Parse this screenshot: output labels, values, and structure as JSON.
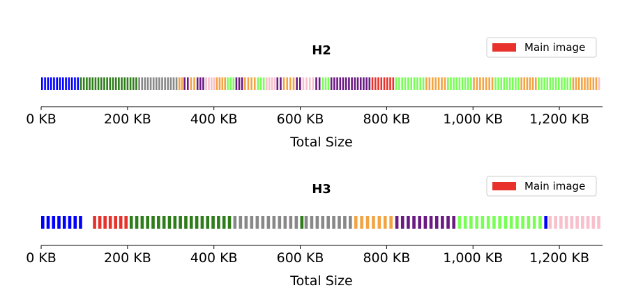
{
  "chart_data": [
    {
      "type": "bar",
      "title": "H2",
      "xlabel": "Total Size",
      "xlim": [
        0,
        1300
      ],
      "x_unit": "KB",
      "xticks": [
        0,
        200,
        400,
        600,
        800,
        1000,
        1200
      ],
      "xtick_labels": [
        "0 KB",
        "200 KB",
        "400 KB",
        "600 KB",
        "800 KB",
        "1,000 KB",
        "1,200 KB"
      ],
      "legend": {
        "label": "Main image",
        "color": "#e8312a",
        "placement": "top-right"
      },
      "segments": [
        {
          "start": 0,
          "end": 90,
          "color": "#0000ff"
        },
        {
          "start": 90,
          "end": 225,
          "color": "#2e7d1a"
        },
        {
          "start": 225,
          "end": 318,
          "color": "#888888"
        },
        {
          "start": 318,
          "end": 330,
          "color": "#f2a444"
        },
        {
          "start": 330,
          "end": 345,
          "color": "#6a1a82"
        },
        {
          "start": 345,
          "end": 360,
          "color": "#f2a444"
        },
        {
          "start": 360,
          "end": 380,
          "color": "#6a1a82"
        },
        {
          "start": 380,
          "end": 405,
          "color": "#f7c0cc"
        },
        {
          "start": 405,
          "end": 430,
          "color": "#f2a444"
        },
        {
          "start": 430,
          "end": 450,
          "color": "#77ff55"
        },
        {
          "start": 450,
          "end": 470,
          "color": "#6a1a82"
        },
        {
          "start": 470,
          "end": 500,
          "color": "#f2a444"
        },
        {
          "start": 500,
          "end": 520,
          "color": "#77ff55"
        },
        {
          "start": 520,
          "end": 545,
          "color": "#f7c0cc"
        },
        {
          "start": 545,
          "end": 560,
          "color": "#6a1a82"
        },
        {
          "start": 560,
          "end": 590,
          "color": "#f2a444"
        },
        {
          "start": 590,
          "end": 605,
          "color": "#6a1a82"
        },
        {
          "start": 605,
          "end": 635,
          "color": "#f7c0cc"
        },
        {
          "start": 635,
          "end": 650,
          "color": "#6a1a82"
        },
        {
          "start": 650,
          "end": 670,
          "color": "#77ff55"
        },
        {
          "start": 670,
          "end": 765,
          "color": "#6a1a82"
        },
        {
          "start": 765,
          "end": 820,
          "color": "#e8312a"
        },
        {
          "start": 820,
          "end": 890,
          "color": "#77ff55"
        },
        {
          "start": 890,
          "end": 940,
          "color": "#f2a444"
        },
        {
          "start": 940,
          "end": 1000,
          "color": "#77ff55"
        },
        {
          "start": 1000,
          "end": 1050,
          "color": "#f2a444"
        },
        {
          "start": 1050,
          "end": 1110,
          "color": "#77ff55"
        },
        {
          "start": 1110,
          "end": 1150,
          "color": "#f2a444"
        },
        {
          "start": 1150,
          "end": 1230,
          "color": "#77ff55"
        },
        {
          "start": 1230,
          "end": 1290,
          "color": "#f2a444"
        },
        {
          "start": 1290,
          "end": 1300,
          "color": "#f7c0cc"
        }
      ]
    },
    {
      "type": "bar",
      "title": "H3",
      "xlabel": "Total Size",
      "xlim": [
        0,
        1300
      ],
      "x_unit": "KB",
      "xticks": [
        0,
        200,
        400,
        600,
        800,
        1000,
        1200
      ],
      "xtick_labels": [
        "0 KB",
        "200 KB",
        "400 KB",
        "600 KB",
        "800 KB",
        "1,000 KB",
        "1,200 KB"
      ],
      "legend": {
        "label": "Main image",
        "color": "#e8312a",
        "placement": "top-right"
      },
      "segments": [
        {
          "start": 0,
          "end": 100,
          "color": "#0000ff"
        },
        {
          "start": 120,
          "end": 205,
          "color": "#e8312a"
        },
        {
          "start": 205,
          "end": 445,
          "color": "#2e7d1a"
        },
        {
          "start": 445,
          "end": 600,
          "color": "#888888"
        },
        {
          "start": 600,
          "end": 610,
          "color": "#2e7d1a"
        },
        {
          "start": 610,
          "end": 725,
          "color": "#888888"
        },
        {
          "start": 725,
          "end": 820,
          "color": "#f2a444"
        },
        {
          "start": 820,
          "end": 965,
          "color": "#6a1a82"
        },
        {
          "start": 965,
          "end": 1165,
          "color": "#77ff55"
        },
        {
          "start": 1165,
          "end": 1175,
          "color": "#0000ff"
        },
        {
          "start": 1175,
          "end": 1300,
          "color": "#f7c0cc"
        }
      ]
    }
  ]
}
